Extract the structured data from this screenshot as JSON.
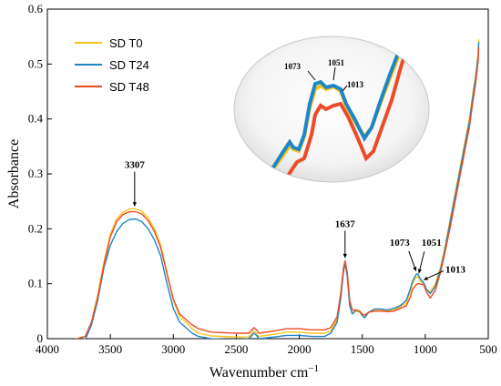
{
  "chart_data": {
    "type": "line",
    "xlabel": "Wavenumber cm",
    "xlabel_sup": "−1",
    "ylabel": "Absorbance",
    "xlim": [
      4000,
      500
    ],
    "ylim": [
      0,
      0.6
    ],
    "x_ticks": [
      "4000",
      "3500",
      "3000",
      "2500",
      "2000",
      "1500",
      "1000",
      "500"
    ],
    "y_ticks": [
      "0",
      "0.1",
      "0.2",
      "0.3",
      "0.4",
      "0.5",
      "0.6"
    ],
    "legend_position": "top-left",
    "series": [
      {
        "name": "SD T0",
        "color": "#f5c518",
        "points": [
          [
            3990,
            -0.01
          ],
          [
            3800,
            -0.008
          ],
          [
            3700,
            0.0
          ],
          [
            3650,
            0.03
          ],
          [
            3600,
            0.08
          ],
          [
            3550,
            0.14
          ],
          [
            3500,
            0.19
          ],
          [
            3450,
            0.218
          ],
          [
            3400,
            0.23
          ],
          [
            3350,
            0.236
          ],
          [
            3300,
            0.236
          ],
          [
            3250,
            0.232
          ],
          [
            3200,
            0.22
          ],
          [
            3150,
            0.2
          ],
          [
            3100,
            0.17
          ],
          [
            3050,
            0.12
          ],
          [
            3000,
            0.07
          ],
          [
            2950,
            0.04
          ],
          [
            2900,
            0.03
          ],
          [
            2850,
            0.018
          ],
          [
            2800,
            0.01
          ],
          [
            2700,
            0.005
          ],
          [
            2500,
            0.003
          ],
          [
            2400,
            0.003
          ],
          [
            2360,
            0.014
          ],
          [
            2340,
            0.01
          ],
          [
            2320,
            0.004
          ],
          [
            2200,
            0.008
          ],
          [
            2100,
            0.012
          ],
          [
            2000,
            0.012
          ],
          [
            1900,
            0.01
          ],
          [
            1800,
            0.01
          ],
          [
            1750,
            0.014
          ],
          [
            1700,
            0.035
          ],
          [
            1670,
            0.08
          ],
          [
            1650,
            0.125
          ],
          [
            1637,
            0.14
          ],
          [
            1620,
            0.12
          ],
          [
            1600,
            0.065
          ],
          [
            1580,
            0.045
          ],
          [
            1550,
            0.05
          ],
          [
            1520,
            0.048
          ],
          [
            1500,
            0.042
          ],
          [
            1480,
            0.04
          ],
          [
            1450,
            0.048
          ],
          [
            1400,
            0.052
          ],
          [
            1350,
            0.052
          ],
          [
            1300,
            0.05
          ],
          [
            1250,
            0.052
          ],
          [
            1200,
            0.058
          ],
          [
            1150,
            0.065
          ],
          [
            1120,
            0.085
          ],
          [
            1100,
            0.1
          ],
          [
            1073,
            0.112
          ],
          [
            1060,
            0.113
          ],
          [
            1051,
            0.11
          ],
          [
            1030,
            0.103
          ],
          [
            1013,
            0.1
          ],
          [
            990,
            0.09
          ],
          [
            960,
            0.085
          ],
          [
            920,
            0.1
          ],
          [
            880,
            0.13
          ],
          [
            850,
            0.16
          ],
          [
            800,
            0.22
          ],
          [
            750,
            0.28
          ],
          [
            700,
            0.34
          ],
          [
            650,
            0.4
          ],
          [
            620,
            0.45
          ],
          [
            600,
            0.48
          ],
          [
            580,
            0.52
          ],
          [
            575,
            0.545
          ]
        ]
      },
      {
        "name": "SD T24",
        "color": "#1f86c6",
        "points": [
          [
            3990,
            -0.01
          ],
          [
            3800,
            -0.008
          ],
          [
            3700,
            -0.002
          ],
          [
            3650,
            0.025
          ],
          [
            3600,
            0.07
          ],
          [
            3550,
            0.13
          ],
          [
            3500,
            0.17
          ],
          [
            3450,
            0.195
          ],
          [
            3400,
            0.21
          ],
          [
            3350,
            0.217
          ],
          [
            3300,
            0.218
          ],
          [
            3250,
            0.213
          ],
          [
            3200,
            0.2
          ],
          [
            3150,
            0.18
          ],
          [
            3100,
            0.15
          ],
          [
            3050,
            0.1
          ],
          [
            3000,
            0.055
          ],
          [
            2950,
            0.03
          ],
          [
            2900,
            0.02
          ],
          [
            2850,
            0.01
          ],
          [
            2800,
            0.004
          ],
          [
            2700,
            0.0
          ],
          [
            2500,
            -0.002
          ],
          [
            2400,
            0.0
          ],
          [
            2360,
            0.01
          ],
          [
            2340,
            0.006
          ],
          [
            2320,
            0.0
          ],
          [
            2200,
            0.003
          ],
          [
            2100,
            0.006
          ],
          [
            2000,
            0.006
          ],
          [
            1900,
            0.004
          ],
          [
            1800,
            0.004
          ],
          [
            1750,
            0.01
          ],
          [
            1700,
            0.03
          ],
          [
            1670,
            0.075
          ],
          [
            1650,
            0.12
          ],
          [
            1637,
            0.138
          ],
          [
            1620,
            0.115
          ],
          [
            1600,
            0.06
          ],
          [
            1580,
            0.045
          ],
          [
            1550,
            0.052
          ],
          [
            1520,
            0.05
          ],
          [
            1500,
            0.042
          ],
          [
            1480,
            0.038
          ],
          [
            1450,
            0.048
          ],
          [
            1400,
            0.054
          ],
          [
            1350,
            0.054
          ],
          [
            1300,
            0.052
          ],
          [
            1250,
            0.055
          ],
          [
            1200,
            0.06
          ],
          [
            1150,
            0.07
          ],
          [
            1120,
            0.09
          ],
          [
            1100,
            0.105
          ],
          [
            1073,
            0.117
          ],
          [
            1060,
            0.118
          ],
          [
            1051,
            0.114
          ],
          [
            1030,
            0.106
          ],
          [
            1013,
            0.102
          ],
          [
            990,
            0.09
          ],
          [
            960,
            0.082
          ],
          [
            920,
            0.095
          ],
          [
            880,
            0.125
          ],
          [
            850,
            0.155
          ],
          [
            800,
            0.215
          ],
          [
            750,
            0.275
          ],
          [
            700,
            0.335
          ],
          [
            650,
            0.395
          ],
          [
            620,
            0.445
          ],
          [
            600,
            0.475
          ],
          [
            580,
            0.515
          ],
          [
            575,
            0.54
          ]
        ]
      },
      {
        "name": "SD T48",
        "color": "#ee4a26",
        "points": [
          [
            3990,
            -0.004
          ],
          [
            3800,
            -0.002
          ],
          [
            3700,
            0.004
          ],
          [
            3650,
            0.03
          ],
          [
            3600,
            0.075
          ],
          [
            3550,
            0.135
          ],
          [
            3500,
            0.185
          ],
          [
            3450,
            0.213
          ],
          [
            3400,
            0.226
          ],
          [
            3350,
            0.231
          ],
          [
            3300,
            0.231
          ],
          [
            3250,
            0.227
          ],
          [
            3200,
            0.215
          ],
          [
            3150,
            0.195
          ],
          [
            3100,
            0.165
          ],
          [
            3050,
            0.118
          ],
          [
            3000,
            0.072
          ],
          [
            2950,
            0.045
          ],
          [
            2900,
            0.035
          ],
          [
            2850,
            0.025
          ],
          [
            2800,
            0.018
          ],
          [
            2700,
            0.012
          ],
          [
            2500,
            0.01
          ],
          [
            2400,
            0.01
          ],
          [
            2360,
            0.02
          ],
          [
            2340,
            0.016
          ],
          [
            2320,
            0.01
          ],
          [
            2200,
            0.014
          ],
          [
            2100,
            0.018
          ],
          [
            2000,
            0.018
          ],
          [
            1900,
            0.016
          ],
          [
            1800,
            0.016
          ],
          [
            1750,
            0.02
          ],
          [
            1700,
            0.04
          ],
          [
            1670,
            0.085
          ],
          [
            1650,
            0.128
          ],
          [
            1637,
            0.142
          ],
          [
            1620,
            0.122
          ],
          [
            1600,
            0.07
          ],
          [
            1580,
            0.052
          ],
          [
            1550,
            0.052
          ],
          [
            1520,
            0.05
          ],
          [
            1500,
            0.045
          ],
          [
            1480,
            0.043
          ],
          [
            1450,
            0.048
          ],
          [
            1400,
            0.05
          ],
          [
            1350,
            0.05
          ],
          [
            1300,
            0.049
          ],
          [
            1250,
            0.05
          ],
          [
            1200,
            0.055
          ],
          [
            1150,
            0.06
          ],
          [
            1120,
            0.075
          ],
          [
            1100,
            0.09
          ],
          [
            1073,
            0.098
          ],
          [
            1060,
            0.1
          ],
          [
            1051,
            0.1
          ],
          [
            1030,
            0.099
          ],
          [
            1013,
            0.098
          ],
          [
            990,
            0.085
          ],
          [
            960,
            0.074
          ],
          [
            920,
            0.088
          ],
          [
            880,
            0.12
          ],
          [
            850,
            0.15
          ],
          [
            800,
            0.205
          ],
          [
            750,
            0.265
          ],
          [
            700,
            0.325
          ],
          [
            650,
            0.385
          ],
          [
            620,
            0.435
          ],
          [
            600,
            0.465
          ],
          [
            580,
            0.505
          ],
          [
            575,
            0.53
          ]
        ]
      }
    ],
    "annotations": [
      {
        "label": "3307",
        "x": 3307,
        "y": 0.236
      },
      {
        "label": "1637",
        "x": 1637,
        "y": 0.142
      },
      {
        "label": "1073",
        "x": 1073,
        "y": 0.118
      },
      {
        "label": "1051",
        "x": 1051,
        "y": 0.114
      },
      {
        "label": "1013",
        "x": 1013,
        "y": 0.102
      }
    ],
    "inset": {
      "labels": [
        "1073",
        "1051",
        "1013"
      ]
    }
  }
}
